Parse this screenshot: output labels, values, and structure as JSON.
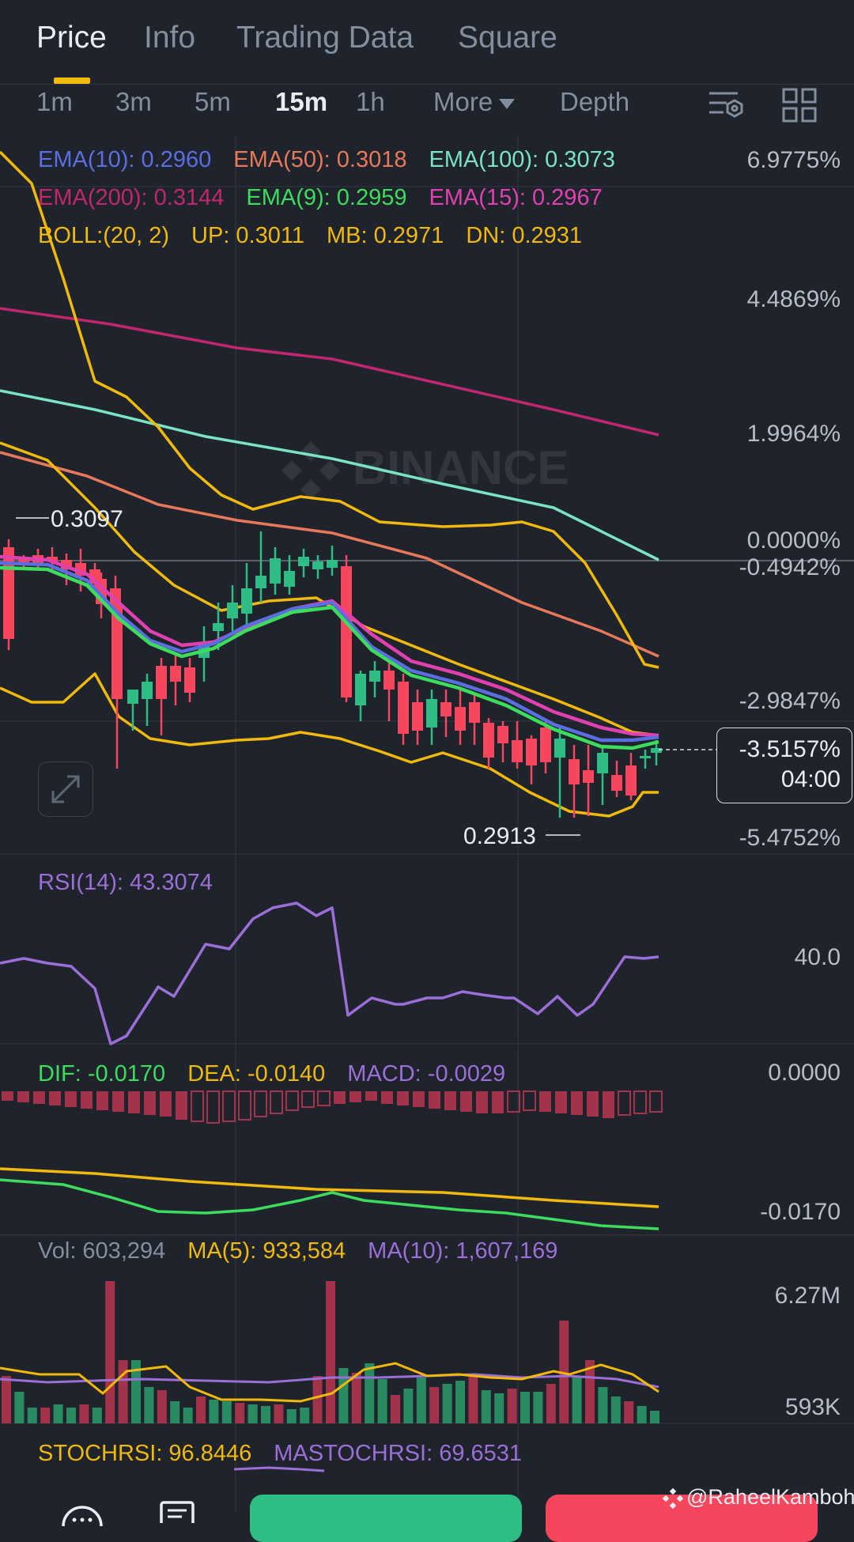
{
  "tabs": [
    {
      "label": "Price",
      "active": true
    },
    {
      "label": "Info"
    },
    {
      "label": "Trading Data"
    },
    {
      "label": "Square"
    }
  ],
  "intervals": [
    "1m",
    "3m",
    "5m",
    "15m",
    "1h"
  ],
  "active_interval": "15m",
  "more_label": "More",
  "depth_label": "Depth",
  "brand_watermark": "BINANCE",
  "indicators": {
    "ema10": "EMA(10): 0.2960",
    "ema50": "EMA(50): 0.3018",
    "ema100": "EMA(100): 0.3073",
    "ema200": "EMA(200): 0.3144",
    "ema9": "EMA(9): 0.2959",
    "ema15": "EMA(15): 0.2967",
    "boll": "BOLL:(20, 2)",
    "boll_up": "UP: 0.3011",
    "boll_mb": "MB: 0.2971",
    "boll_dn": "DN: 0.2931"
  },
  "price_axis": [
    "6.9775%",
    "4.4869%",
    "1.9964%",
    "0.0000%",
    "-0.4942%",
    "-2.9847%",
    "-5.4752%"
  ],
  "high_marker": "0.3097",
  "low_marker": "0.2913",
  "current_tag": {
    "percent": "-3.5157%",
    "countdown": "04:00"
  },
  "rsi": {
    "label": "RSI(14): 43.3074",
    "axis": "40.0"
  },
  "macd": {
    "dif": "DIF: -0.0170",
    "dea": "DEA: -0.0140",
    "macd": "MACD: -0.0029",
    "axis_top": "0.0000",
    "axis_bottom": "-0.0170"
  },
  "volume": {
    "vol": "Vol: 603,294",
    "ma5": "MA(5): 933,584",
    "ma10": "MA(10): 1,607,169",
    "axis_top": "6.27M",
    "axis_bottom": "593K"
  },
  "stochrsi": {
    "stoch": "STOCHRSI: 96.8446",
    "ma": "MASTOCHRSI: 69.6531"
  },
  "watermark_user": "@RaheelKamboh",
  "colors": {
    "up": "#2ebd85",
    "down": "#f6465d",
    "ema10": "#5b6ee1",
    "ema50": "#e8785a",
    "ema100": "#7ae3c3",
    "ema200": "#c2266e",
    "ema9": "#3ddc5c",
    "ema15": "#e040b0",
    "boll": "#f0b90b",
    "rsi": "#9b6ed8",
    "macd_dif": "#3ddc5c",
    "macd_dea": "#f0b90b",
    "vol_ma5": "#f0b90b",
    "vol_ma10": "#9b6ed8"
  }
}
